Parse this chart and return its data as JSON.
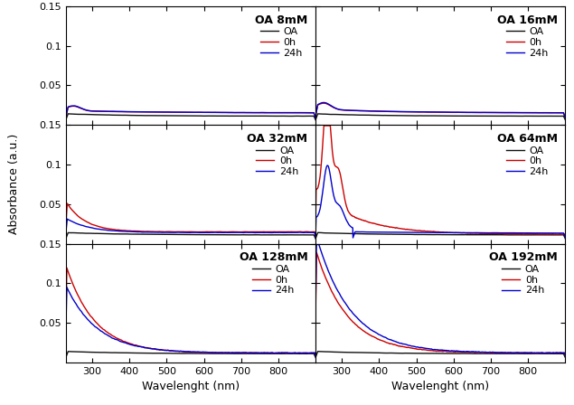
{
  "panels": [
    {
      "title": "OA 8mM",
      "row": 0,
      "col": 0
    },
    {
      "title": "OA 16mM",
      "row": 0,
      "col": 1
    },
    {
      "title": "OA 32mM",
      "row": 1,
      "col": 0
    },
    {
      "title": "OA 64mM",
      "row": 1,
      "col": 1
    },
    {
      "title": "OA 128mM",
      "row": 2,
      "col": 0
    },
    {
      "title": "OA 192mM",
      "row": 2,
      "col": 1
    }
  ],
  "colors": {
    "OA": "#111111",
    "0h": "#cc0000",
    "24h": "#0000cc"
  },
  "xlim": [
    230,
    900
  ],
  "ylim": [
    0.0,
    0.15
  ],
  "yticks": [
    0.05,
    0.1,
    0.15
  ],
  "xticks": [
    300,
    400,
    500,
    600,
    700,
    800
  ],
  "xlabel": "Wavelenght (nm)",
  "ylabel": "Absorbance (a.u.)",
  "linewidth": 1.0,
  "legend_fontsize": 8,
  "legend_title_fontsize": 9,
  "tick_labelsize": 8,
  "axis_labelsize": 9
}
